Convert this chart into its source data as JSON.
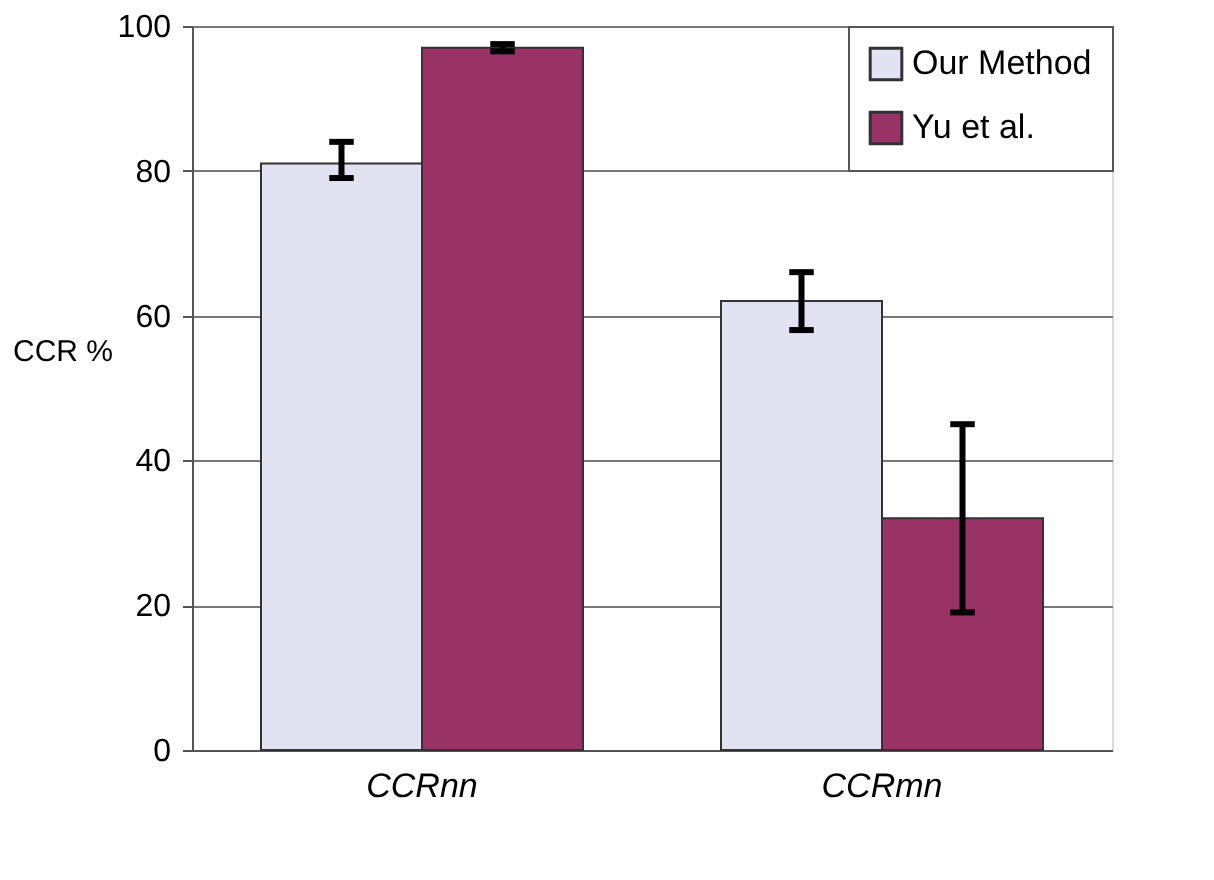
{
  "chart_data": {
    "type": "bar",
    "ylabel": "CCR %",
    "categories": [
      "CCRnn",
      "CCRmn"
    ],
    "series": [
      {
        "name": "Our Method",
        "color": "#e2e2f2",
        "values": [
          81,
          62
        ],
        "errors": [
          [
            79,
            84
          ],
          [
            58,
            66
          ]
        ]
      },
      {
        "name": "Yu et al.",
        "color": "#993366",
        "values": [
          97,
          32
        ],
        "errors": [
          [
            96.5,
            97.5
          ],
          [
            19,
            45
          ]
        ]
      }
    ],
    "ylim": [
      0,
      100
    ],
    "yticks": [
      0,
      20,
      40,
      60,
      80,
      100
    ],
    "grid": "y",
    "legend": "top right"
  }
}
